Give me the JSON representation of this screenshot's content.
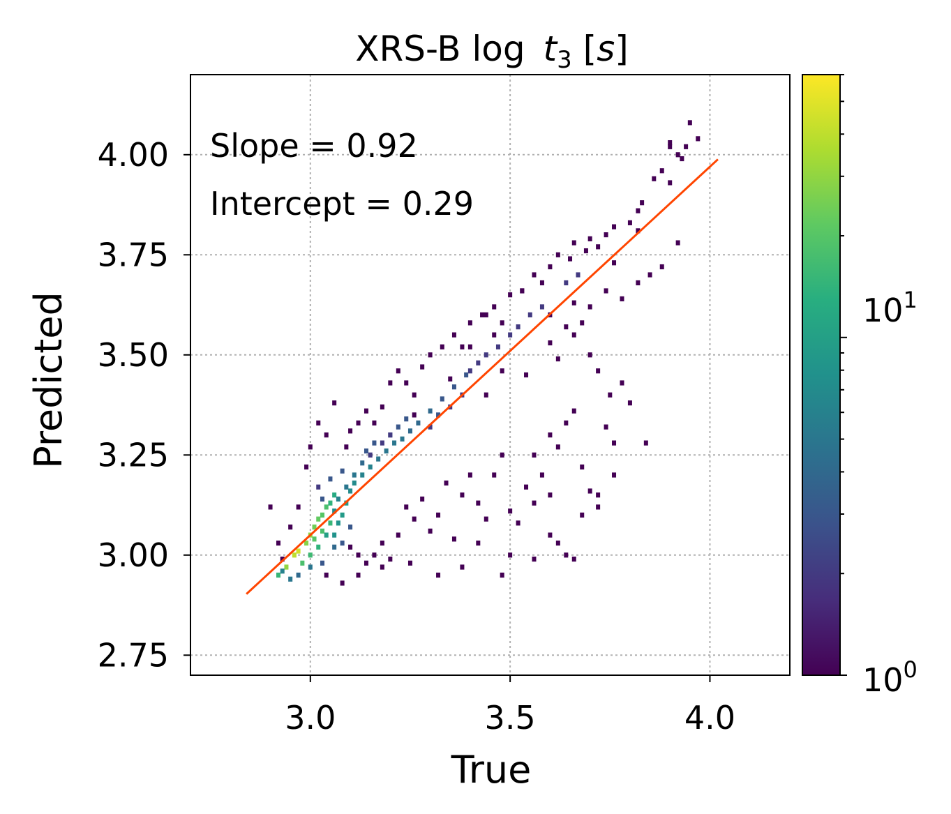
{
  "chart_data": {
    "type": "heatmap",
    "title": {
      "main": "XRS-B log ",
      "var": "t",
      "sub": "3",
      "unit_open": " [",
      "unit_var": "s",
      "unit_close": "]"
    },
    "xlabel": "True",
    "ylabel": "Predicted",
    "xlim": [
      2.7,
      4.2
    ],
    "ylim": [
      2.7,
      4.2
    ],
    "xticks": [
      3.0,
      3.5,
      4.0
    ],
    "xtick_labels": [
      "3.0",
      "3.5",
      "4.0"
    ],
    "yticks": [
      2.75,
      3.0,
      3.25,
      3.5,
      3.75,
      4.0
    ],
    "ytick_labels": [
      "2.75",
      "3.00",
      "3.25",
      "3.50",
      "3.75",
      "4.00"
    ],
    "grid": true,
    "annotations": [
      "Slope = 0.92",
      "Intercept = 0.29"
    ],
    "fit_line": {
      "slope": 0.92,
      "intercept": 0.29,
      "x_range": [
        2.84,
        4.02
      ],
      "color": "#ff4500"
    },
    "colorbar": {
      "scale": "log",
      "range": [
        1,
        60
      ],
      "colormap": "viridis",
      "tick_labels": [
        {
          "base": "10",
          "exp": "0"
        },
        {
          "base": "10",
          "exp": "1"
        }
      ]
    },
    "bin_size": [
      0.0105,
      0.0125
    ],
    "bins": [
      [
        2.92,
        2.95,
        15
      ],
      [
        2.94,
        2.97,
        30
      ],
      [
        2.96,
        3.0,
        40
      ],
      [
        2.97,
        3.01,
        45
      ],
      [
        2.99,
        3.03,
        28
      ],
      [
        3.0,
        3.05,
        30
      ],
      [
        3.01,
        3.07,
        24
      ],
      [
        3.02,
        3.09,
        22
      ],
      [
        3.03,
        3.1,
        20
      ],
      [
        3.04,
        3.12,
        18
      ],
      [
        3.05,
        3.13,
        14
      ],
      [
        3.06,
        3.15,
        12
      ],
      [
        2.98,
        2.98,
        18
      ],
      [
        3.0,
        3.0,
        16
      ],
      [
        3.02,
        3.02,
        14
      ],
      [
        3.01,
        3.04,
        20
      ],
      [
        3.03,
        3.06,
        18
      ],
      [
        3.05,
        3.08,
        15
      ],
      [
        3.04,
        3.05,
        10
      ],
      [
        3.06,
        3.05,
        8
      ],
      [
        3.07,
        3.08,
        8
      ],
      [
        3.08,
        3.1,
        9
      ],
      [
        3.09,
        3.13,
        9
      ],
      [
        3.1,
        3.16,
        7
      ],
      [
        3.11,
        3.18,
        7
      ],
      [
        3.13,
        3.2,
        6
      ],
      [
        3.15,
        3.22,
        6
      ],
      [
        3.17,
        3.24,
        5
      ],
      [
        3.19,
        3.26,
        5
      ],
      [
        3.21,
        3.28,
        5
      ],
      [
        3.23,
        3.29,
        5
      ],
      [
        3.25,
        3.31,
        4
      ],
      [
        3.27,
        3.33,
        4
      ],
      [
        3.3,
        3.36,
        4
      ],
      [
        3.33,
        3.39,
        3
      ],
      [
        3.36,
        3.42,
        3
      ],
      [
        3.39,
        3.45,
        3
      ],
      [
        3.06,
        3.11,
        7
      ],
      [
        3.07,
        3.14,
        6
      ],
      [
        3.09,
        3.17,
        5
      ],
      [
        3.11,
        3.2,
        5
      ],
      [
        3.13,
        3.23,
        4
      ],
      [
        3.14,
        3.26,
        3
      ],
      [
        3.16,
        3.28,
        3
      ],
      [
        3.2,
        3.3,
        3
      ],
      [
        3.22,
        3.32,
        3
      ],
      [
        3.24,
        3.34,
        3
      ],
      [
        2.95,
        2.94,
        5
      ],
      [
        2.93,
        2.96,
        6
      ],
      [
        2.97,
        2.95,
        4
      ],
      [
        3.0,
        2.97,
        5
      ],
      [
        3.03,
        2.98,
        3
      ],
      [
        3.06,
        3.02,
        4
      ],
      [
        3.08,
        3.03,
        3
      ],
      [
        3.1,
        3.07,
        3
      ],
      [
        3.03,
        3.14,
        3
      ],
      [
        3.02,
        3.17,
        2
      ],
      [
        3.05,
        3.19,
        3
      ],
      [
        3.08,
        3.21,
        3
      ],
      [
        3.15,
        3.25,
        2
      ],
      [
        3.18,
        3.28,
        2
      ],
      [
        3.2,
        3.3,
        2
      ],
      [
        3.3,
        3.32,
        2
      ],
      [
        3.32,
        3.35,
        3
      ],
      [
        3.35,
        3.37,
        2
      ],
      [
        3.38,
        3.4,
        2
      ],
      [
        3.4,
        3.46,
        2
      ],
      [
        3.42,
        3.48,
        2
      ],
      [
        3.44,
        3.5,
        2
      ],
      [
        3.47,
        3.52,
        2
      ],
      [
        3.5,
        3.55,
        2
      ],
      [
        3.52,
        3.57,
        2
      ],
      [
        3.55,
        3.6,
        2
      ],
      [
        3.58,
        3.62,
        2
      ],
      [
        3.64,
        3.68,
        2
      ],
      [
        3.67,
        3.7,
        2
      ],
      [
        3.9,
        4.02,
        1
      ],
      [
        2.9,
        3.12,
        1
      ],
      [
        2.92,
        3.03,
        1
      ],
      [
        2.93,
        2.99,
        1
      ],
      [
        2.95,
        3.07,
        1
      ],
      [
        2.97,
        3.12,
        1
      ],
      [
        2.99,
        3.22,
        1
      ],
      [
        3.0,
        3.27,
        1
      ],
      [
        3.02,
        3.33,
        1
      ],
      [
        3.04,
        3.3,
        1
      ],
      [
        3.06,
        3.38,
        1
      ],
      [
        3.09,
        3.27,
        1
      ],
      [
        3.1,
        3.31,
        1
      ],
      [
        3.12,
        3.33,
        1
      ],
      [
        3.14,
        3.36,
        1
      ],
      [
        3.16,
        3.33,
        1
      ],
      [
        3.18,
        3.37,
        1
      ],
      [
        3.2,
        3.43,
        1
      ],
      [
        3.22,
        3.46,
        1
      ],
      [
        3.24,
        3.43,
        1
      ],
      [
        3.26,
        3.4,
        1
      ],
      [
        3.28,
        3.47,
        1
      ],
      [
        3.3,
        3.5,
        1
      ],
      [
        3.33,
        3.52,
        1
      ],
      [
        3.36,
        3.55,
        1
      ],
      [
        3.38,
        3.52,
        1
      ],
      [
        3.4,
        3.58,
        1
      ],
      [
        3.43,
        3.6,
        1
      ],
      [
        3.46,
        3.62,
        1
      ],
      [
        3.48,
        3.58,
        1
      ],
      [
        3.5,
        3.65,
        1
      ],
      [
        3.53,
        3.66,
        1
      ],
      [
        3.56,
        3.7,
        1
      ],
      [
        3.58,
        3.68,
        1
      ],
      [
        3.6,
        3.72,
        1
      ],
      [
        3.62,
        3.75,
        1
      ],
      [
        3.65,
        3.74,
        1
      ],
      [
        3.66,
        3.78,
        1
      ],
      [
        3.69,
        3.76,
        1
      ],
      [
        3.7,
        3.79,
        1
      ],
      [
        3.72,
        3.77,
        1
      ],
      [
        3.74,
        3.8,
        1
      ],
      [
        3.76,
        3.82,
        1
      ],
      [
        3.8,
        3.83,
        1
      ],
      [
        3.82,
        3.81,
        1
      ],
      [
        3.83,
        3.88,
        1
      ],
      [
        3.86,
        3.94,
        1
      ],
      [
        3.88,
        3.96,
        1
      ],
      [
        3.9,
        4.03,
        1
      ],
      [
        3.92,
        4.0,
        1
      ],
      [
        3.94,
        4.02,
        1
      ],
      [
        3.95,
        4.08,
        1
      ],
      [
        3.97,
        4.04,
        1
      ],
      [
        3.93,
        3.99,
        1
      ],
      [
        3.1,
        3.02,
        1
      ],
      [
        3.12,
        3.0,
        1
      ],
      [
        3.14,
        2.98,
        1
      ],
      [
        3.16,
        3.0,
        1
      ],
      [
        3.18,
        3.03,
        1
      ],
      [
        3.2,
        2.99,
        1
      ],
      [
        3.22,
        3.05,
        1
      ],
      [
        3.24,
        3.12,
        1
      ],
      [
        3.26,
        3.09,
        1
      ],
      [
        3.28,
        3.14,
        1
      ],
      [
        3.3,
        3.06,
        1
      ],
      [
        3.32,
        3.1,
        1
      ],
      [
        3.34,
        3.18,
        1
      ],
      [
        3.36,
        3.04,
        1
      ],
      [
        3.38,
        3.15,
        1
      ],
      [
        3.4,
        3.2,
        1
      ],
      [
        3.42,
        3.13,
        1
      ],
      [
        3.44,
        3.09,
        1
      ],
      [
        3.46,
        3.2,
        1
      ],
      [
        3.48,
        3.25,
        1
      ],
      [
        3.5,
        3.11,
        1
      ],
      [
        3.52,
        3.08,
        1
      ],
      [
        3.54,
        3.17,
        1
      ],
      [
        3.56,
        3.25,
        1
      ],
      [
        3.58,
        3.2,
        1
      ],
      [
        3.6,
        3.3,
        1
      ],
      [
        3.62,
        3.27,
        1
      ],
      [
        3.64,
        3.33,
        1
      ],
      [
        3.66,
        3.36,
        1
      ],
      [
        3.68,
        3.22,
        1
      ],
      [
        3.7,
        3.16,
        1
      ],
      [
        3.72,
        3.15,
        1
      ],
      [
        3.74,
        3.32,
        1
      ],
      [
        3.76,
        3.28,
        1
      ],
      [
        3.78,
        3.43,
        1
      ],
      [
        3.8,
        3.38,
        1
      ],
      [
        3.84,
        3.28,
        1
      ],
      [
        3.6,
        3.05,
        1
      ],
      [
        3.62,
        3.03,
        1
      ],
      [
        3.64,
        3.0,
        1
      ],
      [
        3.66,
        2.99,
        1
      ],
      [
        3.56,
        2.99,
        1
      ],
      [
        3.5,
        3.0,
        1
      ],
      [
        3.42,
        3.03,
        1
      ],
      [
        3.38,
        2.97,
        1
      ],
      [
        3.32,
        2.95,
        1
      ],
      [
        3.25,
        2.98,
        1
      ],
      [
        3.18,
        2.97,
        1
      ],
      [
        3.12,
        2.95,
        1
      ],
      [
        3.08,
        2.93,
        1
      ],
      [
        3.04,
        2.95,
        1
      ],
      [
        3.48,
        2.95,
        1
      ],
      [
        3.56,
        3.13,
        1
      ],
      [
        3.6,
        3.15,
        1
      ],
      [
        3.68,
        3.1,
        1
      ],
      [
        3.72,
        3.12,
        1
      ],
      [
        3.76,
        3.2,
        1
      ],
      [
        3.7,
        3.5,
        1
      ],
      [
        3.72,
        3.46,
        1
      ],
      [
        3.75,
        3.4,
        1
      ],
      [
        3.68,
        3.58,
        1
      ],
      [
        3.66,
        3.55,
        1
      ],
      [
        3.62,
        3.49,
        1
      ],
      [
        3.54,
        3.45,
        1
      ],
      [
        3.48,
        3.46,
        1
      ],
      [
        3.44,
        3.4,
        1
      ],
      [
        3.46,
        3.55,
        1
      ],
      [
        3.44,
        3.6,
        1
      ],
      [
        3.4,
        3.52,
        1
      ],
      [
        3.35,
        3.44,
        1
      ],
      [
        3.26,
        3.35,
        1
      ],
      [
        3.6,
        3.6,
        1
      ],
      [
        3.64,
        3.57,
        1
      ],
      [
        3.66,
        3.63,
        1
      ],
      [
        3.7,
        3.62,
        1
      ],
      [
        3.74,
        3.66,
        1
      ],
      [
        3.78,
        3.64,
        1
      ],
      [
        3.82,
        3.68,
        1
      ],
      [
        3.85,
        3.7,
        1
      ],
      [
        3.88,
        3.72,
        1
      ],
      [
        3.92,
        3.78,
        1
      ],
      [
        3.9,
        3.93,
        1
      ],
      [
        3.82,
        3.86,
        1
      ],
      [
        3.76,
        3.73,
        1
      ],
      [
        3.53,
        3.66,
        1
      ],
      [
        3.6,
        3.53,
        1
      ]
    ]
  }
}
